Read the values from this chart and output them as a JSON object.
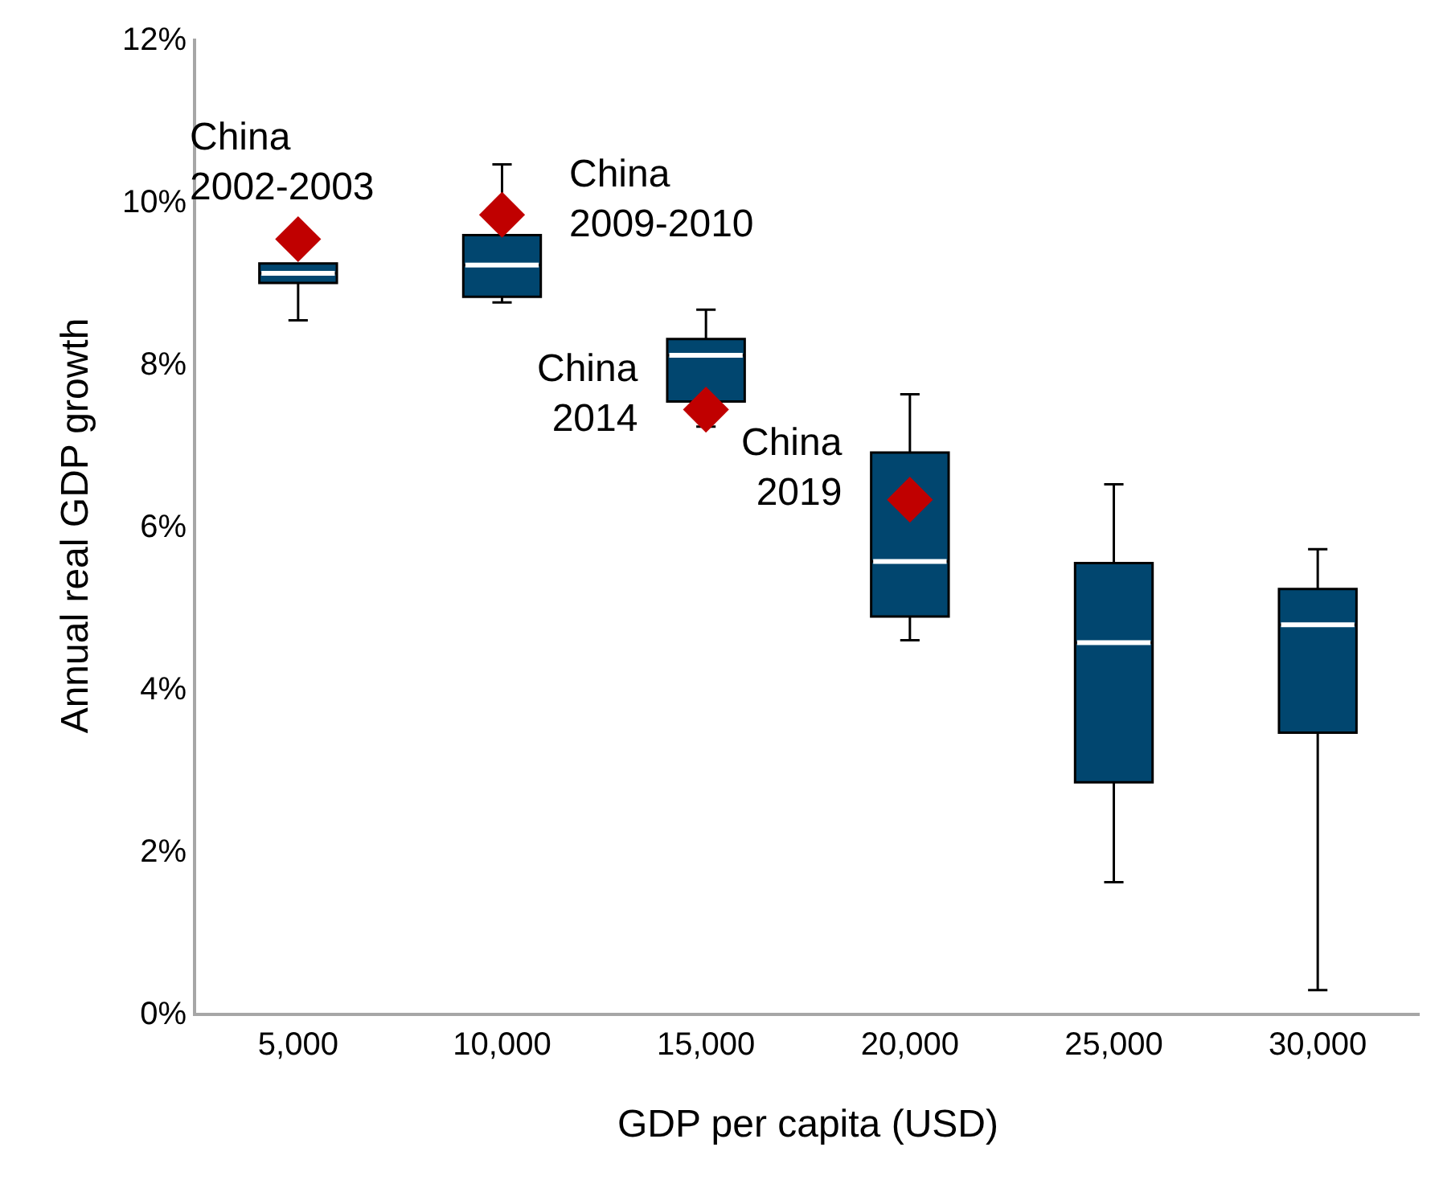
{
  "chart_data": {
    "type": "box",
    "xlabel": "GDP per capita (USD)",
    "ylabel": "Annual real GDP growth",
    "categories": [
      "5,000",
      "10,000",
      "15,000",
      "20,000",
      "25,000",
      "30,000"
    ],
    "series": [
      {
        "color": "#01466f",
        "boxes": [
          {
            "low": 8.53,
            "q1": 8.99,
            "median": 9.11,
            "q3": 9.23,
            "high": 9.23
          },
          {
            "low": 8.75,
            "q1": 8.82,
            "median": 9.21,
            "q3": 9.58,
            "high": 10.45
          },
          {
            "low": 7.22,
            "q1": 7.53,
            "median": 8.1,
            "q3": 8.3,
            "high": 8.66
          },
          {
            "low": 4.59,
            "q1": 4.88,
            "median": 5.56,
            "q3": 6.9,
            "high": 7.62
          },
          {
            "low": 1.61,
            "q1": 2.84,
            "median": 4.56,
            "q3": 5.54,
            "high": 6.51
          },
          {
            "low": 0.28,
            "q1": 3.45,
            "median": 4.78,
            "q3": 5.22,
            "high": 5.71
          }
        ]
      },
      {
        "type": "scatter",
        "color": "#c00000",
        "marker": "diamond",
        "x": [
          "5,000",
          "10,000",
          "15,000",
          "20,000"
        ],
        "values": [
          9.53,
          9.83,
          7.43,
          6.32
        ]
      }
    ],
    "annotations": [
      {
        "text": "China\n2002-2003",
        "x": "5,000",
        "y": 9.53
      },
      {
        "text": "China\n2009-2010",
        "x": "10,000",
        "y": 9.83
      },
      {
        "text": "China\n2014",
        "x": "15,000",
        "y": 7.43
      },
      {
        "text": "China\n2019",
        "x": "20,000",
        "y": 6.32
      }
    ],
    "ylim": [
      0,
      12
    ],
    "yticks": [
      {
        "value": 0,
        "label": "0%"
      },
      {
        "value": 2,
        "label": "2%"
      },
      {
        "value": 4,
        "label": "4%"
      },
      {
        "value": 6,
        "label": "6%"
      },
      {
        "value": 8,
        "label": "8%"
      },
      {
        "value": 10,
        "label": "10%"
      },
      {
        "value": 12,
        "label": "12%"
      }
    ]
  }
}
